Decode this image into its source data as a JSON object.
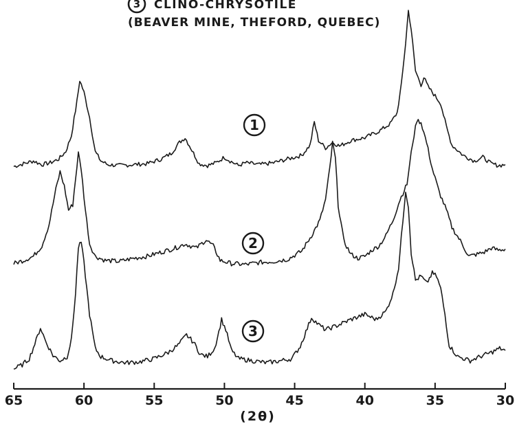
{
  "chart_data": {
    "type": "line",
    "title_line1": "CLINO-CHRYSOTILE",
    "title_line2": "(BEAVER MINE, THEFORD, QUEBEC)",
    "title_marker": "3",
    "xlabel": "(2θ)",
    "x_reversed": true,
    "xlim": [
      65,
      30
    ],
    "xticks": [
      65,
      60,
      55,
      50,
      45,
      40,
      35,
      30
    ],
    "ylabel": "",
    "grid": false,
    "series": [
      {
        "name": "1",
        "points": [
          [
            65.0,
            0.02
          ],
          [
            64.3,
            0.05
          ],
          [
            63.6,
            0.08
          ],
          [
            63.0,
            0.04
          ],
          [
            62.4,
            0.06
          ],
          [
            61.8,
            0.1
          ],
          [
            61.3,
            0.18
          ],
          [
            60.9,
            0.35
          ],
          [
            60.5,
            0.72
          ],
          [
            60.3,
            0.95
          ],
          [
            60.0,
            0.82
          ],
          [
            59.6,
            0.55
          ],
          [
            59.2,
            0.18
          ],
          [
            58.8,
            0.08
          ],
          [
            58.3,
            0.04
          ],
          [
            57.5,
            0.03
          ],
          [
            56.5,
            0.04
          ],
          [
            55.5,
            0.05
          ],
          [
            54.5,
            0.1
          ],
          [
            53.8,
            0.16
          ],
          [
            53.2,
            0.28
          ],
          [
            52.8,
            0.33
          ],
          [
            52.4,
            0.22
          ],
          [
            51.8,
            0.05
          ],
          [
            51.2,
            0.03
          ],
          [
            50.6,
            0.06
          ],
          [
            50.0,
            0.12
          ],
          [
            49.6,
            0.08
          ],
          [
            49.0,
            0.03
          ],
          [
            48.5,
            0.06
          ],
          [
            47.5,
            0.04
          ],
          [
            46.5,
            0.06
          ],
          [
            45.5,
            0.1
          ],
          [
            44.5,
            0.14
          ],
          [
            43.9,
            0.25
          ],
          [
            43.6,
            0.5
          ],
          [
            43.3,
            0.3
          ],
          [
            42.8,
            0.22
          ],
          [
            42.3,
            0.28
          ],
          [
            41.8,
            0.24
          ],
          [
            41.0,
            0.3
          ],
          [
            40.0,
            0.33
          ],
          [
            39.0,
            0.4
          ],
          [
            38.2,
            0.48
          ],
          [
            37.7,
            0.6
          ],
          [
            37.4,
            0.9
          ],
          [
            37.1,
            1.35
          ],
          [
            36.9,
            1.7
          ],
          [
            36.7,
            1.5
          ],
          [
            36.4,
            1.05
          ],
          [
            36.0,
            0.9
          ],
          [
            35.8,
            0.98
          ],
          [
            35.5,
            0.88
          ],
          [
            35.0,
            0.78
          ],
          [
            34.6,
            0.7
          ],
          [
            34.2,
            0.45
          ],
          [
            33.8,
            0.25
          ],
          [
            33.0,
            0.14
          ],
          [
            32.2,
            0.08
          ],
          [
            31.6,
            0.12
          ],
          [
            31.0,
            0.05
          ],
          [
            30.5,
            0.03
          ],
          [
            30.0,
            0.04
          ]
        ]
      },
      {
        "name": "2",
        "points": [
          [
            65.0,
            0.03
          ],
          [
            64.3,
            0.06
          ],
          [
            63.6,
            0.1
          ],
          [
            63.0,
            0.2
          ],
          [
            62.5,
            0.4
          ],
          [
            62.0,
            0.75
          ],
          [
            61.7,
            0.92
          ],
          [
            61.4,
            0.78
          ],
          [
            61.1,
            0.55
          ],
          [
            60.8,
            0.6
          ],
          [
            60.6,
            0.85
          ],
          [
            60.4,
            1.1
          ],
          [
            60.2,
            0.95
          ],
          [
            59.9,
            0.55
          ],
          [
            59.6,
            0.22
          ],
          [
            59.2,
            0.1
          ],
          [
            58.5,
            0.06
          ],
          [
            57.5,
            0.05
          ],
          [
            56.5,
            0.08
          ],
          [
            55.5,
            0.1
          ],
          [
            54.5,
            0.14
          ],
          [
            53.5,
            0.18
          ],
          [
            52.8,
            0.22
          ],
          [
            52.0,
            0.18
          ],
          [
            51.3,
            0.26
          ],
          [
            50.8,
            0.2
          ],
          [
            50.3,
            0.06
          ],
          [
            49.5,
            0.03
          ],
          [
            48.5,
            0.02
          ],
          [
            47.5,
            0.04
          ],
          [
            46.5,
            0.05
          ],
          [
            45.5,
            0.07
          ],
          [
            44.5,
            0.15
          ],
          [
            43.8,
            0.3
          ],
          [
            43.2,
            0.45
          ],
          [
            42.8,
            0.65
          ],
          [
            42.5,
            0.95
          ],
          [
            42.3,
            1.2
          ],
          [
            42.1,
            1.05
          ],
          [
            41.9,
            0.6
          ],
          [
            41.5,
            0.25
          ],
          [
            41.0,
            0.12
          ],
          [
            40.5,
            0.08
          ],
          [
            40.0,
            0.1
          ],
          [
            39.5,
            0.16
          ],
          [
            39.0,
            0.2
          ],
          [
            38.5,
            0.3
          ],
          [
            38.0,
            0.45
          ],
          [
            37.5,
            0.65
          ],
          [
            37.0,
            0.8
          ],
          [
            36.6,
            1.2
          ],
          [
            36.3,
            1.42
          ],
          [
            36.0,
            1.4
          ],
          [
            35.6,
            1.2
          ],
          [
            35.2,
            0.95
          ],
          [
            34.7,
            0.72
          ],
          [
            34.2,
            0.55
          ],
          [
            33.8,
            0.38
          ],
          [
            33.2,
            0.25
          ],
          [
            32.6,
            0.1
          ],
          [
            32.0,
            0.12
          ],
          [
            31.5,
            0.14
          ],
          [
            31.0,
            0.18
          ],
          [
            30.5,
            0.16
          ],
          [
            30.0,
            0.17
          ]
        ]
      },
      {
        "name": "3",
        "points": [
          [
            65.0,
            0.02
          ],
          [
            64.4,
            0.06
          ],
          [
            63.9,
            0.12
          ],
          [
            63.4,
            0.3
          ],
          [
            63.1,
            0.42
          ],
          [
            62.7,
            0.28
          ],
          [
            62.2,
            0.15
          ],
          [
            61.7,
            0.1
          ],
          [
            61.2,
            0.14
          ],
          [
            60.9,
            0.3
          ],
          [
            60.6,
            0.75
          ],
          [
            60.4,
            1.2
          ],
          [
            60.2,
            1.25
          ],
          [
            60.0,
            1.05
          ],
          [
            59.6,
            0.55
          ],
          [
            59.2,
            0.22
          ],
          [
            58.8,
            0.14
          ],
          [
            58.0,
            0.1
          ],
          [
            57.0,
            0.08
          ],
          [
            56.0,
            0.09
          ],
          [
            55.0,
            0.12
          ],
          [
            54.0,
            0.18
          ],
          [
            53.3,
            0.25
          ],
          [
            52.7,
            0.35
          ],
          [
            52.2,
            0.28
          ],
          [
            51.7,
            0.16
          ],
          [
            51.2,
            0.14
          ],
          [
            50.7,
            0.22
          ],
          [
            50.4,
            0.38
          ],
          [
            50.2,
            0.5
          ],
          [
            49.9,
            0.4
          ],
          [
            49.5,
            0.2
          ],
          [
            49.0,
            0.12
          ],
          [
            48.0,
            0.1
          ],
          [
            47.0,
            0.08
          ],
          [
            46.0,
            0.1
          ],
          [
            45.2,
            0.12
          ],
          [
            44.6,
            0.24
          ],
          [
            44.2,
            0.38
          ],
          [
            43.8,
            0.52
          ],
          [
            43.3,
            0.45
          ],
          [
            42.8,
            0.4
          ],
          [
            42.0,
            0.44
          ],
          [
            41.0,
            0.5
          ],
          [
            40.0,
            0.55
          ],
          [
            39.2,
            0.5
          ],
          [
            38.5,
            0.58
          ],
          [
            38.0,
            0.75
          ],
          [
            37.6,
            1.0
          ],
          [
            37.3,
            1.45
          ],
          [
            37.1,
            1.75
          ],
          [
            36.9,
            1.6
          ],
          [
            36.7,
            1.15
          ],
          [
            36.4,
            0.88
          ],
          [
            36.0,
            0.92
          ],
          [
            35.6,
            0.85
          ],
          [
            35.2,
            0.95
          ],
          [
            34.9,
            0.92
          ],
          [
            34.6,
            0.8
          ],
          [
            34.3,
            0.55
          ],
          [
            34.0,
            0.25
          ],
          [
            33.4,
            0.14
          ],
          [
            32.5,
            0.1
          ],
          [
            31.8,
            0.14
          ],
          [
            31.0,
            0.18
          ],
          [
            30.4,
            0.22
          ],
          [
            30.0,
            0.2
          ]
        ]
      }
    ]
  }
}
